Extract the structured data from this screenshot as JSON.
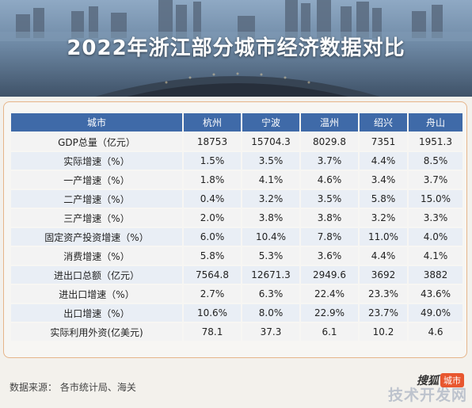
{
  "header": {
    "title": "2022年浙江部分城市经济数据对比"
  },
  "table": {
    "headers": [
      "城市",
      "杭州",
      "宁波",
      "温州",
      "绍兴",
      "舟山"
    ],
    "rows": [
      {
        "label": "GDP总量（亿元）",
        "values": [
          "18753",
          "15704.3",
          "8029.8",
          "7351",
          "1951.3"
        ]
      },
      {
        "label": "实际增速（%）",
        "values": [
          "1.5%",
          "3.5%",
          "3.7%",
          "4.4%",
          "8.5%"
        ]
      },
      {
        "label": "一产增速（%）",
        "values": [
          "1.8%",
          "4.1%",
          "4.6%",
          "3.4%",
          "3.7%"
        ]
      },
      {
        "label": "二产增速（%）",
        "values": [
          "0.4%",
          "3.2%",
          "3.5%",
          "5.8%",
          "15.0%"
        ]
      },
      {
        "label": "三产增速（%）",
        "values": [
          "2.0%",
          "3.8%",
          "3.8%",
          "3.2%",
          "3.3%"
        ]
      },
      {
        "label": "固定资产投资增速（%）",
        "values": [
          "6.0%",
          "10.4%",
          "7.8%",
          "11.0%",
          "4.0%"
        ]
      },
      {
        "label": "消费增速（%）",
        "values": [
          "5.8%",
          "5.3%",
          "3.6%",
          "4.4%",
          "4.1%"
        ]
      },
      {
        "label": "进出口总额（亿元）",
        "values": [
          "7564.8",
          "12671.3",
          "2949.6",
          "3692",
          "3882"
        ]
      },
      {
        "label": "进出口增速（%）",
        "values": [
          "2.7%",
          "6.3%",
          "22.4%",
          "23.3%",
          "43.6%"
        ]
      },
      {
        "label": "出口增速（%）",
        "values": [
          "10.6%",
          "8.0%",
          "22.9%",
          "23.7%",
          "49.0%"
        ]
      },
      {
        "label": "实际利用外资(亿美元)",
        "values": [
          "78.1",
          "37.3",
          "6.1",
          "10.2",
          "4.6"
        ]
      }
    ]
  },
  "footer": {
    "source": "数据来源：  各市统计局、海关",
    "logo_brand": "搜狐",
    "logo_tag": "城市",
    "watermark": "技术开发网"
  },
  "colors": {
    "header_blue": "#3f6aa8",
    "frame_border": "#e6b58a",
    "logo_orange": "#e8572f"
  }
}
